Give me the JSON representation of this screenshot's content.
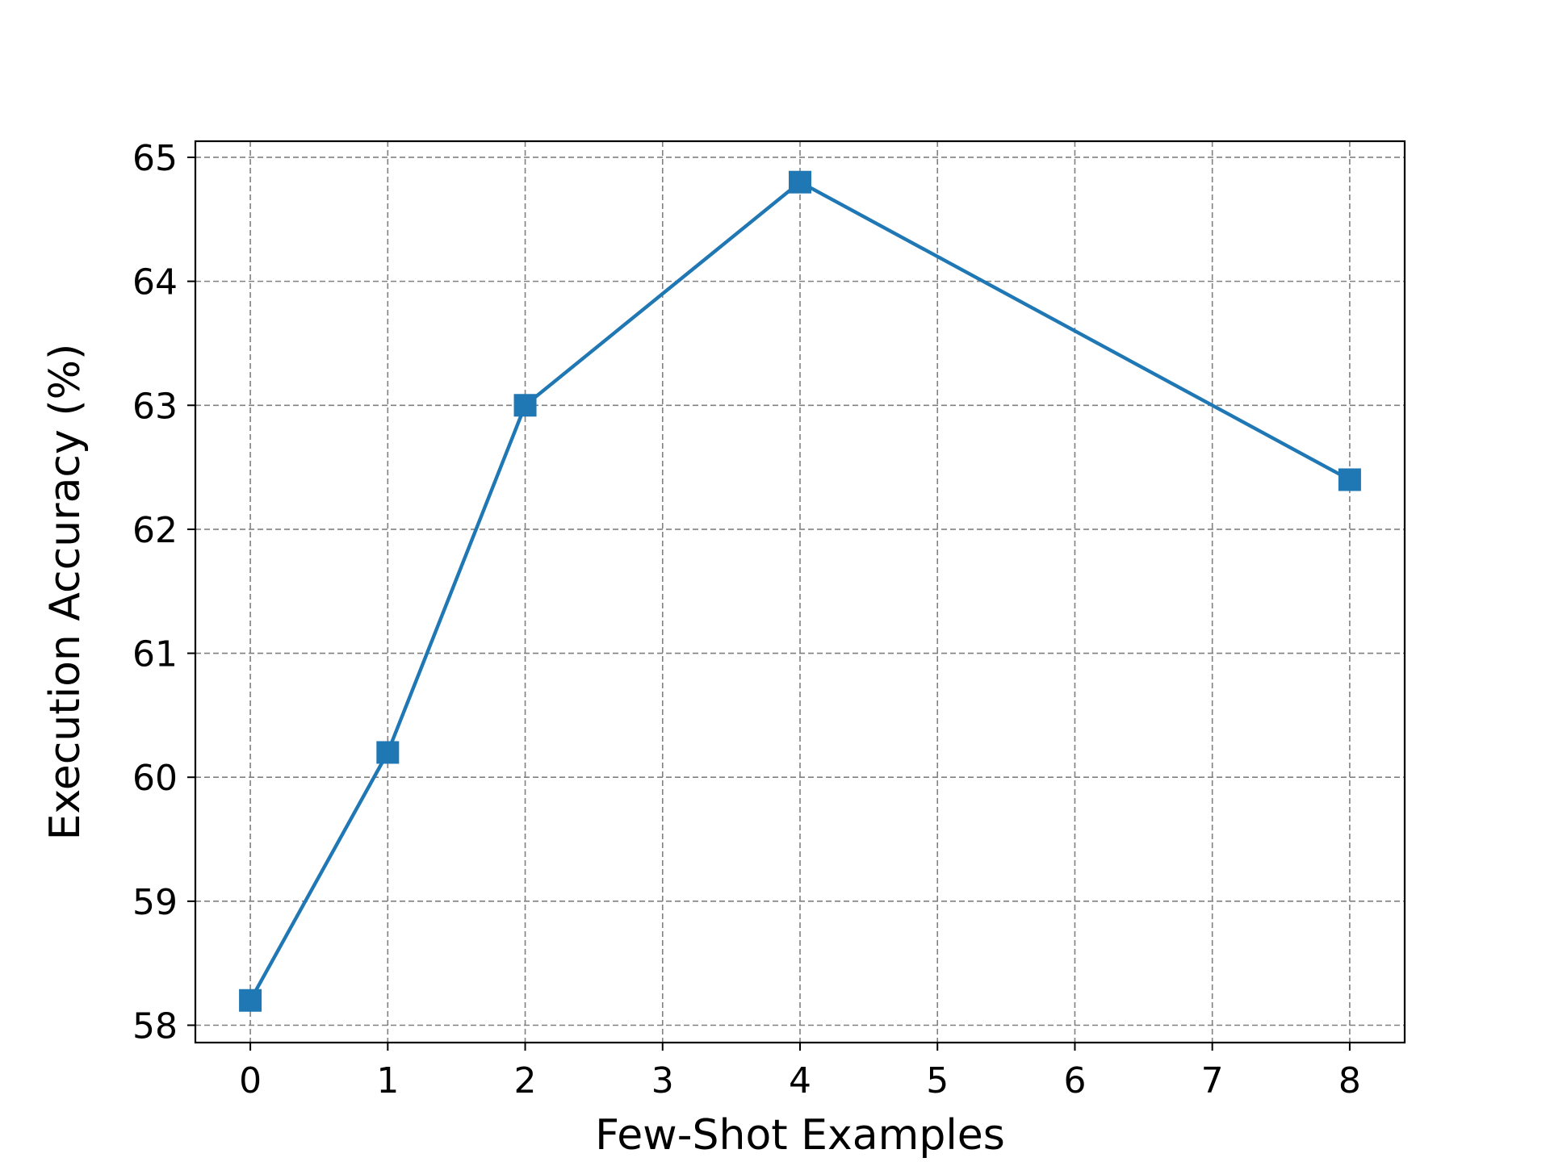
{
  "chart_data": {
    "type": "line",
    "title": "",
    "xlabel": "Few-Shot Examples",
    "ylabel": "Execution Accuracy (%)",
    "xlim": [
      -0.4,
      8.4
    ],
    "ylim": [
      57.86,
      65.13
    ],
    "xticks": [
      0,
      1,
      2,
      3,
      4,
      5,
      6,
      7,
      8
    ],
    "yticks": [
      58,
      59,
      60,
      61,
      62,
      63,
      64,
      65
    ],
    "grid": true,
    "legend": "none",
    "series": [
      {
        "x": [
          0,
          1,
          2,
          4,
          8
        ],
        "y": [
          58.2,
          60.2,
          63.0,
          64.8,
          62.4
        ],
        "color": "#1f77b4",
        "marker": "square",
        "linestyle": "solid"
      }
    ]
  }
}
